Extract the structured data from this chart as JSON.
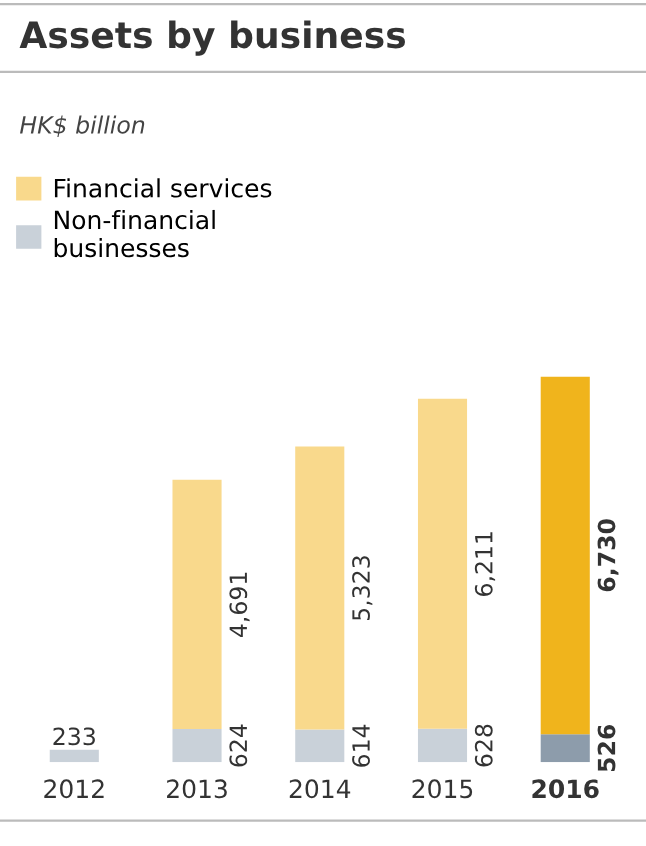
{
  "chart_data": {
    "type": "bar",
    "title": "Assets by business",
    "subtitle": "HK$ billion",
    "stacked": true,
    "legend": "top left",
    "categories": [
      "2012",
      "2013",
      "2014",
      "2015",
      "2016"
    ],
    "series": [
      {
        "name": "Non-financial\nbusinesses",
        "color": "#c9d1d9",
        "colors": [
          "#c9d1d9",
          "#c9d1d9",
          "#c9d1d9",
          "#c9d1d9",
          "#8d9cab"
        ],
        "values": [
          233,
          624,
          614,
          628,
          526
        ],
        "value_labels": [
          "233",
          "624",
          "614",
          "628",
          "526"
        ]
      },
      {
        "name": "Financial services",
        "color": "#f9d98c",
        "colors": [
          "#f9d98c",
          "#f9d98c",
          "#f9d98c",
          "#f9d98c",
          "#f0b41c"
        ],
        "values": [
          null,
          4691,
          5323,
          6211,
          6730
        ],
        "value_labels": [
          null,
          "4,691",
          "5,323",
          "6,211",
          "6,730"
        ]
      }
    ]
  }
}
